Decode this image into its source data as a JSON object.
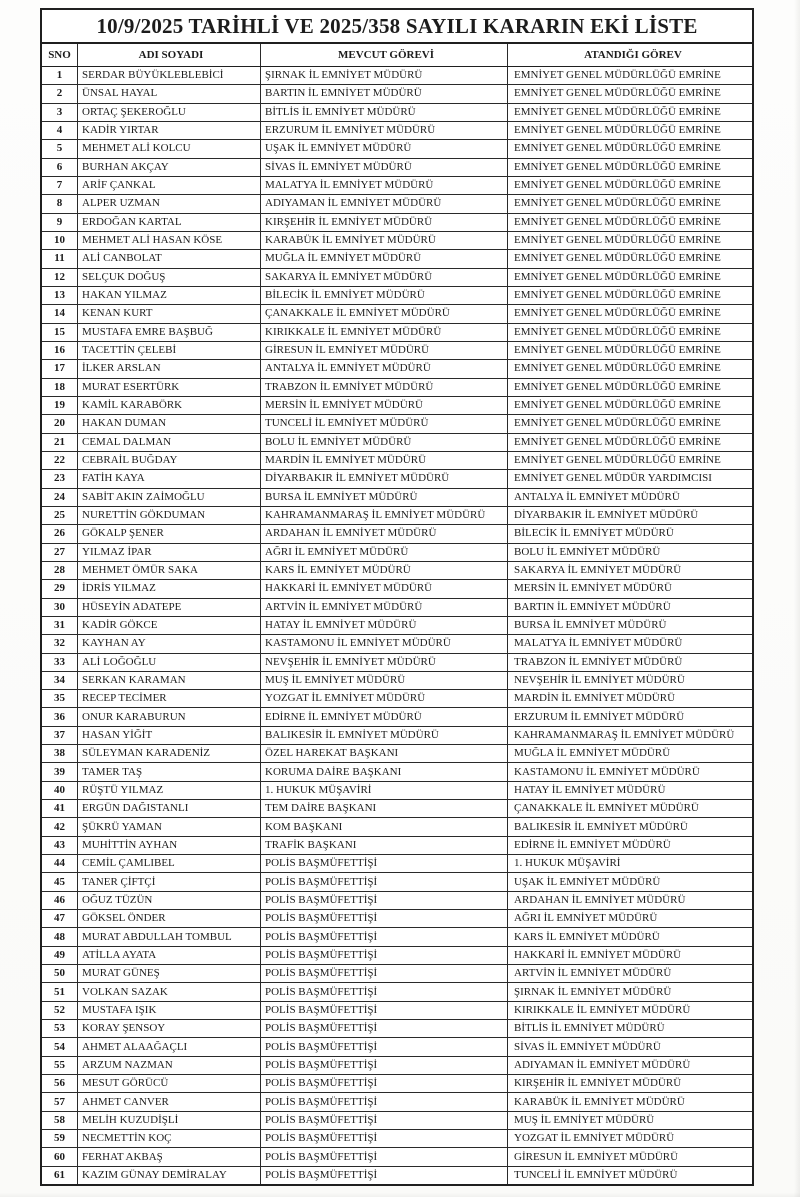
{
  "document": {
    "title": "10/9/2025 TARİHLİ VE 2025/358 SAYILI KARARIN EKİ LİSTE",
    "columns": [
      "SNO",
      "ADI SOYADI",
      "MEVCUT GÖREVİ",
      "ATANDIĞI GÖREV"
    ],
    "rows": [
      [
        "1",
        "SERDAR BÜYÜKLEBLEBİCİ",
        "ŞIRNAK İL EMNİYET MÜDÜRÜ",
        "EMNİYET GENEL MÜDÜRLÜĞÜ EMRİNE"
      ],
      [
        "2",
        "ÜNSAL HAYAL",
        "BARTIN İL EMNİYET MÜDÜRÜ",
        "EMNİYET GENEL MÜDÜRLÜĞÜ EMRİNE"
      ],
      [
        "3",
        "ORTAÇ ŞEKEROĞLU",
        "BİTLİS İL EMNİYET MÜDÜRÜ",
        "EMNİYET GENEL MÜDÜRLÜĞÜ EMRİNE"
      ],
      [
        "4",
        "KADİR YIRTAR",
        "ERZURUM İL EMNİYET MÜDÜRÜ",
        "EMNİYET GENEL MÜDÜRLÜĞÜ EMRİNE"
      ],
      [
        "5",
        "MEHMET ALİ KOLCU",
        "UŞAK İL EMNİYET MÜDÜRÜ",
        "EMNİYET GENEL MÜDÜRLÜĞÜ EMRİNE"
      ],
      [
        "6",
        "BURHAN AKÇAY",
        "SİVAS İL EMNİYET MÜDÜRÜ",
        "EMNİYET GENEL MÜDÜRLÜĞÜ EMRİNE"
      ],
      [
        "7",
        "ARİF ÇANKAL",
        "MALATYA İL EMNİYET MÜDÜRÜ",
        "EMNİYET GENEL MÜDÜRLÜĞÜ EMRİNE"
      ],
      [
        "8",
        "ALPER UZMAN",
        "ADIYAMAN İL EMNİYET MÜDÜRÜ",
        "EMNİYET GENEL MÜDÜRLÜĞÜ EMRİNE"
      ],
      [
        "9",
        "ERDOĞAN KARTAL",
        "KIRŞEHİR İL EMNİYET MÜDÜRÜ",
        "EMNİYET GENEL MÜDÜRLÜĞÜ EMRİNE"
      ],
      [
        "10",
        "MEHMET ALİ HASAN KÖSE",
        "KARABÜK İL EMNİYET MÜDÜRÜ",
        "EMNİYET GENEL MÜDÜRLÜĞÜ EMRİNE"
      ],
      [
        "11",
        "ALİ CANBOLAT",
        "MUĞLA İL EMNİYET MÜDÜRÜ",
        "EMNİYET GENEL MÜDÜRLÜĞÜ EMRİNE"
      ],
      [
        "12",
        "SELÇUK DOĞUŞ",
        "SAKARYA İL EMNİYET MÜDÜRÜ",
        "EMNİYET GENEL MÜDÜRLÜĞÜ EMRİNE"
      ],
      [
        "13",
        "HAKAN YILMAZ",
        "BİLECİK İL EMNİYET MÜDÜRÜ",
        "EMNİYET GENEL MÜDÜRLÜĞÜ EMRİNE"
      ],
      [
        "14",
        "KENAN KURT",
        "ÇANAKKALE İL EMNİYET MÜDÜRÜ",
        "EMNİYET GENEL MÜDÜRLÜĞÜ EMRİNE"
      ],
      [
        "15",
        "MUSTAFA EMRE BAŞBUĞ",
        "KIRIKKALE İL EMNİYET MÜDÜRÜ",
        "EMNİYET GENEL MÜDÜRLÜĞÜ EMRİNE"
      ],
      [
        "16",
        "TACETTİN ÇELEBİ",
        "GİRESUN İL EMNİYET MÜDÜRÜ",
        "EMNİYET GENEL MÜDÜRLÜĞÜ EMRİNE"
      ],
      [
        "17",
        "İLKER ARSLAN",
        "ANTALYA İL EMNİYET MÜDÜRÜ",
        "EMNİYET GENEL MÜDÜRLÜĞÜ EMRİNE"
      ],
      [
        "18",
        "MURAT ESERTÜRK",
        "TRABZON İL EMNİYET MÜDÜRÜ",
        "EMNİYET GENEL MÜDÜRLÜĞÜ EMRİNE"
      ],
      [
        "19",
        "KAMİL KARABÖRK",
        "MERSİN İL EMNİYET MÜDÜRÜ",
        "EMNİYET GENEL MÜDÜRLÜĞÜ EMRİNE"
      ],
      [
        "20",
        "HAKAN DUMAN",
        "TUNCELİ İL EMNİYET MÜDÜRÜ",
        "EMNİYET GENEL MÜDÜRLÜĞÜ EMRİNE"
      ],
      [
        "21",
        "CEMAL DALMAN",
        "BOLU İL EMNİYET MÜDÜRÜ",
        "EMNİYET GENEL MÜDÜRLÜĞÜ EMRİNE"
      ],
      [
        "22",
        "CEBRAİL BUĞDAY",
        "MARDİN İL EMNİYET MÜDÜRÜ",
        "EMNİYET GENEL MÜDÜRLÜĞÜ EMRİNE"
      ],
      [
        "23",
        "FATİH KAYA",
        "DİYARBAKIR İL EMNİYET MÜDÜRÜ",
        "EMNİYET GENEL MÜDÜR YARDIMCISI"
      ],
      [
        "24",
        "SABİT AKIN ZAİMOĞLU",
        "BURSA İL EMNİYET MÜDÜRÜ",
        "ANTALYA İL EMNİYET MÜDÜRÜ"
      ],
      [
        "25",
        "NURETTİN GÖKDUMAN",
        "KAHRAMANMARAŞ İL EMNİYET MÜDÜRÜ",
        "DİYARBAKIR İL EMNİYET MÜDÜRÜ"
      ],
      [
        "26",
        "GÖKALP ŞENER",
        "ARDAHAN İL EMNİYET MÜDÜRÜ",
        "BİLECİK İL EMNİYET MÜDÜRÜ"
      ],
      [
        "27",
        "YILMAZ İPAR",
        "AĞRI İL EMNİYET MÜDÜRÜ",
        "BOLU İL EMNİYET MÜDÜRÜ"
      ],
      [
        "28",
        "MEHMET ÖMÜR SAKA",
        "KARS İL EMNİYET MÜDÜRÜ",
        "SAKARYA İL EMNİYET MÜDÜRÜ"
      ],
      [
        "29",
        "İDRİS YILMAZ",
        "HAKKARİ İL EMNİYET MÜDÜRÜ",
        "MERSİN İL EMNİYET MÜDÜRÜ"
      ],
      [
        "30",
        "HÜSEYİN ADATEPE",
        "ARTVİN İL EMNİYET MÜDÜRÜ",
        "BARTIN İL EMNİYET MÜDÜRÜ"
      ],
      [
        "31",
        "KADİR GÖKCE",
        "HATAY İL EMNİYET MÜDÜRÜ",
        "BURSA İL EMNİYET MÜDÜRÜ"
      ],
      [
        "32",
        "KAYHAN AY",
        "KASTAMONU İL EMNİYET MÜDÜRÜ",
        "MALATYA İL EMNİYET MÜDÜRÜ"
      ],
      [
        "33",
        "ALİ LOĞOĞLU",
        "NEVŞEHİR İL EMNİYET MÜDÜRÜ",
        "TRABZON İL EMNİYET MÜDÜRÜ"
      ],
      [
        "34",
        "SERKAN KARAMAN",
        "MUŞ İL EMNİYET MÜDÜRÜ",
        "NEVŞEHİR İL EMNİYET MÜDÜRÜ"
      ],
      [
        "35",
        "RECEP TECİMER",
        "YOZGAT İL EMNİYET MÜDÜRÜ",
        "MARDİN İL EMNİYET MÜDÜRÜ"
      ],
      [
        "36",
        "ONUR KARABURUN",
        "EDİRNE İL EMNİYET MÜDÜRÜ",
        "ERZURUM İL EMNİYET MÜDÜRÜ"
      ],
      [
        "37",
        "HASAN YİĞİT",
        "BALIKESİR İL EMNİYET MÜDÜRÜ",
        "KAHRAMANMARAŞ İL EMNİYET MÜDÜRÜ"
      ],
      [
        "38",
        "SÜLEYMAN KARADENİZ",
        "ÖZEL HAREKAT BAŞKANI",
        "MUĞLA İL EMNİYET MÜDÜRÜ"
      ],
      [
        "39",
        "TAMER TAŞ",
        "KORUMA DAİRE BAŞKANI",
        "KASTAMONU İL EMNİYET MÜDÜRÜ"
      ],
      [
        "40",
        "RÜŞTÜ YILMAZ",
        "1. HUKUK MÜŞAVİRİ",
        "HATAY İL EMNİYET MÜDÜRÜ"
      ],
      [
        "41",
        "ERGÜN DAĞISTANLI",
        "TEM DAİRE BAŞKANI",
        "ÇANAKKALE İL EMNİYET MÜDÜRÜ"
      ],
      [
        "42",
        "ŞÜKRÜ YAMAN",
        "KOM BAŞKANI",
        "BALIKESİR İL EMNİYET MÜDÜRÜ"
      ],
      [
        "43",
        "MUHİTTİN AYHAN",
        "TRAFİK BAŞKANI",
        "EDİRNE İL EMNİYET MÜDÜRÜ"
      ],
      [
        "44",
        "CEMİL ÇAMLIBEL",
        "POLİS BAŞMÜFETTİŞİ",
        "1. HUKUK MÜŞAVİRİ"
      ],
      [
        "45",
        "TANER ÇİFTÇİ",
        "POLİS BAŞMÜFETTİŞİ",
        "UŞAK İL EMNİYET MÜDÜRÜ"
      ],
      [
        "46",
        "OĞUZ TÜZÜN",
        "POLİS BAŞMÜFETTİŞİ",
        "ARDAHAN İL EMNİYET MÜDÜRÜ"
      ],
      [
        "47",
        "GÖKSEL ÖNDER",
        "POLİS BAŞMÜFETTİŞİ",
        "AĞRI İL EMNİYET MÜDÜRÜ"
      ],
      [
        "48",
        "MURAT ABDULLAH TOMBUL",
        "POLİS BAŞMÜFETTİŞİ",
        "KARS İL EMNİYET MÜDÜRÜ"
      ],
      [
        "49",
        "ATİLLA AYATA",
        "POLİS BAŞMÜFETTİŞİ",
        "HAKKARİ İL EMNİYET MÜDÜRÜ"
      ],
      [
        "50",
        "MURAT GÜNEŞ",
        "POLİS BAŞMÜFETTİŞİ",
        "ARTVİN İL EMNİYET MÜDÜRÜ"
      ],
      [
        "51",
        "VOLKAN SAZAK",
        "POLİS BAŞMÜFETTİŞİ",
        "ŞIRNAK İL EMNİYET MÜDÜRÜ"
      ],
      [
        "52",
        "MUSTAFA IŞIK",
        "POLİS BAŞMÜFETTİŞİ",
        "KIRIKKALE İL EMNİYET MÜDÜRÜ"
      ],
      [
        "53",
        "KORAY ŞENSOY",
        "POLİS BAŞMÜFETTİŞİ",
        "BİTLİS İL EMNİYET MÜDÜRÜ"
      ],
      [
        "54",
        "AHMET ALAAĞAÇLI",
        "POLİS BAŞMÜFETTİŞİ",
        "SİVAS İL EMNİYET MÜDÜRÜ"
      ],
      [
        "55",
        "ARZUM NAZMAN",
        "POLİS BAŞMÜFETTİŞİ",
        "ADIYAMAN İL EMNİYET MÜDÜRÜ"
      ],
      [
        "56",
        "MESUT GÖRÜCÜ",
        "POLİS BAŞMÜFETTİŞİ",
        "KIRŞEHİR İL EMNİYET MÜDÜRÜ"
      ],
      [
        "57",
        "AHMET CANVER",
        "POLİS BAŞMÜFETTİŞİ",
        "KARABÜK İL EMNİYET MÜDÜRÜ"
      ],
      [
        "58",
        "MELİH KUZUDİŞLİ",
        "POLİS BAŞMÜFETTİŞİ",
        "MUŞ İL EMNİYET MÜDÜRÜ"
      ],
      [
        "59",
        "NECMETTİN KOÇ",
        "POLİS BAŞMÜFETTİŞİ",
        "YOZGAT İL EMNİYET MÜDÜRÜ"
      ],
      [
        "60",
        "FERHAT AKBAŞ",
        "POLİS BAŞMÜFETTİŞİ",
        "GİRESUN İL EMNİYET MÜDÜRÜ"
      ],
      [
        "61",
        "KAZIM GÜNAY DEMİRALAY",
        "POLİS BAŞMÜFETTİŞİ",
        "TUNCELİ İL EMNİYET MÜDÜRÜ"
      ]
    ]
  }
}
